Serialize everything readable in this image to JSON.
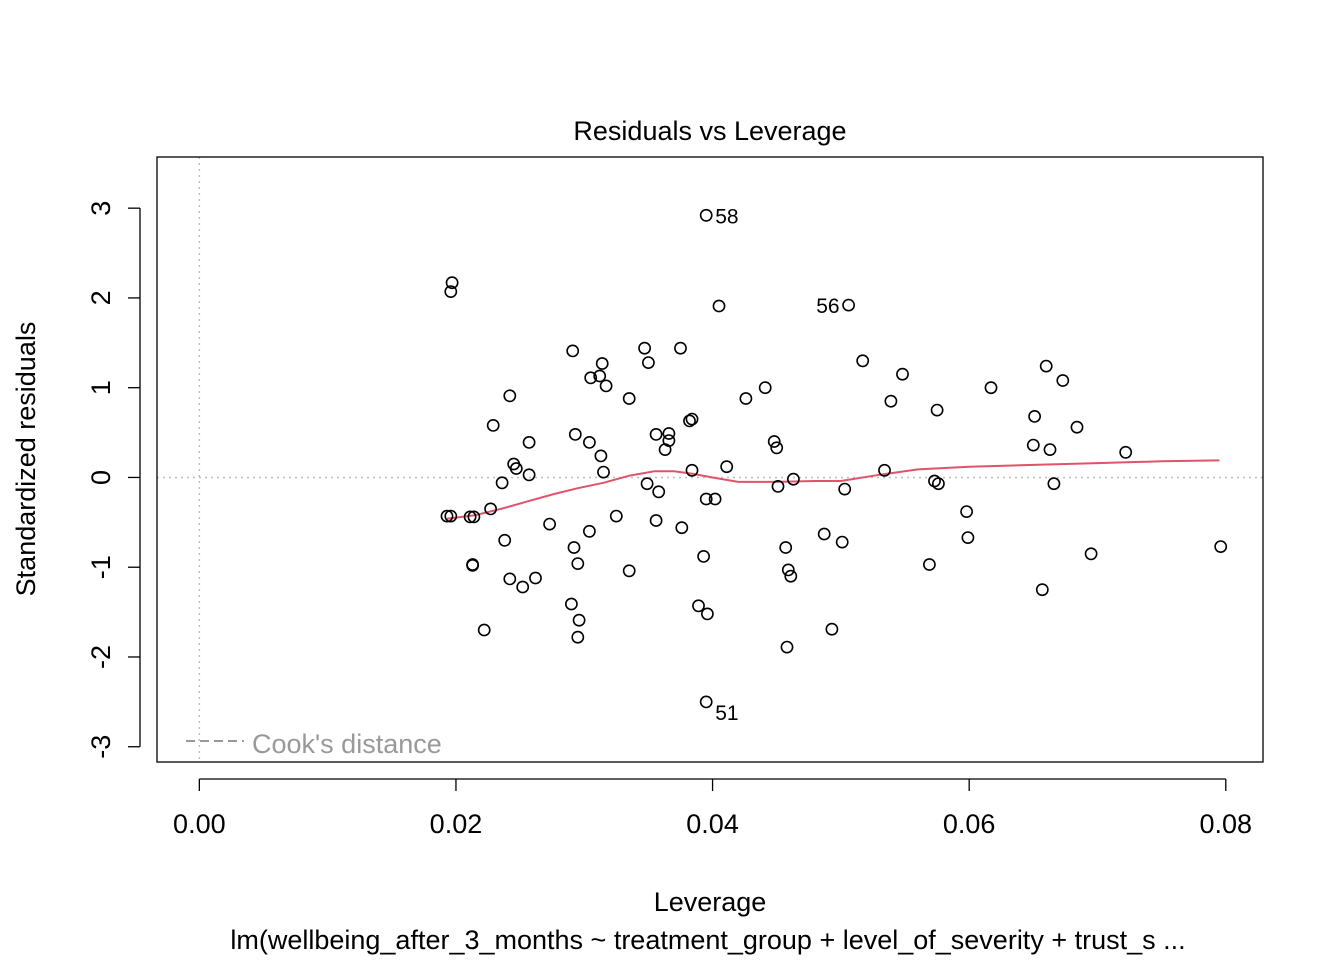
{
  "chart_data": {
    "type": "scatter",
    "title": "Residuals vs Leverage",
    "xlabel": "Leverage",
    "ylabel": "Standardized residuals",
    "subtitle": "lm(wellbeing_after_3_months ~ treatment_group + level_of_severity + trust_s ...",
    "xlim": [
      -0.0033,
      0.0829
    ],
    "ylim": [
      -3.17,
      3.57
    ],
    "x_ticks": [
      0.0,
      0.02,
      0.04,
      0.06,
      0.08
    ],
    "x_tick_labels": [
      "0.00",
      "0.02",
      "0.04",
      "0.06",
      "0.08"
    ],
    "y_ticks": [
      -3,
      -2,
      -1,
      0,
      1,
      2,
      3
    ],
    "y_tick_labels": [
      "-3",
      "-2",
      "-1",
      "0",
      "1",
      "2",
      "3"
    ],
    "legend": {
      "label": "Cook's distance",
      "position": "bottom-left",
      "line_style": "dashed"
    },
    "reference_lines": {
      "vertical_x": 0,
      "horizontal_y": 0,
      "style": "dotted"
    },
    "colors": {
      "points": "#000000",
      "smooth_line": "#DF536B",
      "reference_lines": "#BEBEBE",
      "legend_text": "#999999"
    },
    "labeled_points": [
      {
        "label": "58",
        "x": 0.0395,
        "y": 2.92
      },
      {
        "label": "56",
        "x": 0.0506,
        "y": 1.92
      },
      {
        "label": "51",
        "x": 0.0395,
        "y": -2.5
      }
    ],
    "points": [
      [
        0.0395,
        2.92
      ],
      [
        0.0506,
        1.92
      ],
      [
        0.0395,
        -2.5
      ],
      [
        0.0197,
        2.17
      ],
      [
        0.0196,
        2.07
      ],
      [
        0.0405,
        1.91
      ],
      [
        0.0291,
        1.41
      ],
      [
        0.0347,
        1.44
      ],
      [
        0.0375,
        1.44
      ],
      [
        0.0314,
        1.27
      ],
      [
        0.035,
        1.28
      ],
      [
        0.0517,
        1.3
      ],
      [
        0.066,
        1.24
      ],
      [
        0.0548,
        1.15
      ],
      [
        0.0305,
        1.11
      ],
      [
        0.0312,
        1.13
      ],
      [
        0.0317,
        1.02
      ],
      [
        0.0673,
        1.08
      ],
      [
        0.0441,
        1.0
      ],
      [
        0.0617,
        1.0
      ],
      [
        0.0242,
        0.91
      ],
      [
        0.0335,
        0.88
      ],
      [
        0.0426,
        0.88
      ],
      [
        0.0539,
        0.85
      ],
      [
        0.0575,
        0.75
      ],
      [
        0.0651,
        0.68
      ],
      [
        0.0382,
        0.63
      ],
      [
        0.0384,
        0.65
      ],
      [
        0.0229,
        0.58
      ],
      [
        0.0684,
        0.56
      ],
      [
        0.0293,
        0.48
      ],
      [
        0.0356,
        0.48
      ],
      [
        0.0366,
        0.49
      ],
      [
        0.0366,
        0.41
      ],
      [
        0.0257,
        0.39
      ],
      [
        0.0304,
        0.39
      ],
      [
        0.0448,
        0.4
      ],
      [
        0.065,
        0.36
      ],
      [
        0.045,
        0.33
      ],
      [
        0.0363,
        0.31
      ],
      [
        0.0663,
        0.31
      ],
      [
        0.0722,
        0.28
      ],
      [
        0.0313,
        0.24
      ],
      [
        0.0245,
        0.15
      ],
      [
        0.0247,
        0.1
      ],
      [
        0.0411,
        0.12
      ],
      [
        0.0384,
        0.08
      ],
      [
        0.0534,
        0.08
      ],
      [
        0.0315,
        0.06
      ],
      [
        0.0257,
        0.03
      ],
      [
        0.0463,
        -0.02
      ],
      [
        0.0573,
        -0.04
      ],
      [
        0.0236,
        -0.06
      ],
      [
        0.0349,
        -0.07
      ],
      [
        0.0576,
        -0.07
      ],
      [
        0.0666,
        -0.07
      ],
      [
        0.0451,
        -0.1
      ],
      [
        0.0358,
        -0.16
      ],
      [
        0.0503,
        -0.13
      ],
      [
        0.0395,
        -0.24
      ],
      [
        0.0402,
        -0.24
      ],
      [
        0.0227,
        -0.35
      ],
      [
        0.0193,
        -0.43
      ],
      [
        0.0196,
        -0.43
      ],
      [
        0.0211,
        -0.44
      ],
      [
        0.0214,
        -0.44
      ],
      [
        0.0598,
        -0.38
      ],
      [
        0.0325,
        -0.43
      ],
      [
        0.0356,
        -0.48
      ],
      [
        0.0273,
        -0.52
      ],
      [
        0.0376,
        -0.56
      ],
      [
        0.0304,
        -0.6
      ],
      [
        0.0487,
        -0.63
      ],
      [
        0.0599,
        -0.67
      ],
      [
        0.0238,
        -0.7
      ],
      [
        0.0501,
        -0.72
      ],
      [
        0.0292,
        -0.78
      ],
      [
        0.0457,
        -0.78
      ],
      [
        0.0796,
        -0.77
      ],
      [
        0.0695,
        -0.85
      ],
      [
        0.0393,
        -0.88
      ],
      [
        0.0213,
        -0.97
      ],
      [
        0.0213,
        -0.98
      ],
      [
        0.0295,
        -0.96
      ],
      [
        0.0569,
        -0.97
      ],
      [
        0.0335,
        -1.04
      ],
      [
        0.0459,
        -1.03
      ],
      [
        0.0461,
        -1.1
      ],
      [
        0.0242,
        -1.13
      ],
      [
        0.0262,
        -1.12
      ],
      [
        0.0252,
        -1.22
      ],
      [
        0.0657,
        -1.25
      ],
      [
        0.029,
        -1.41
      ],
      [
        0.0389,
        -1.43
      ],
      [
        0.0396,
        -1.52
      ],
      [
        0.0296,
        -1.59
      ],
      [
        0.0222,
        -1.7
      ],
      [
        0.0493,
        -1.69
      ],
      [
        0.0295,
        -1.78
      ],
      [
        0.0458,
        -1.89
      ]
    ],
    "smooth_line": [
      [
        0.0193,
        -0.46
      ],
      [
        0.0215,
        -0.42
      ],
      [
        0.0235,
        -0.35
      ],
      [
        0.0255,
        -0.27
      ],
      [
        0.0275,
        -0.19
      ],
      [
        0.0295,
        -0.12
      ],
      [
        0.0315,
        -0.06
      ],
      [
        0.0335,
        0.02
      ],
      [
        0.0355,
        0.07
      ],
      [
        0.037,
        0.07
      ],
      [
        0.0385,
        0.04
      ],
      [
        0.04,
        0.0
      ],
      [
        0.042,
        -0.05
      ],
      [
        0.045,
        -0.05
      ],
      [
        0.048,
        -0.04
      ],
      [
        0.05,
        -0.04
      ],
      [
        0.053,
        0.03
      ],
      [
        0.056,
        0.09
      ],
      [
        0.06,
        0.12
      ],
      [
        0.065,
        0.14
      ],
      [
        0.07,
        0.16
      ],
      [
        0.075,
        0.18
      ],
      [
        0.0795,
        0.19
      ]
    ]
  }
}
